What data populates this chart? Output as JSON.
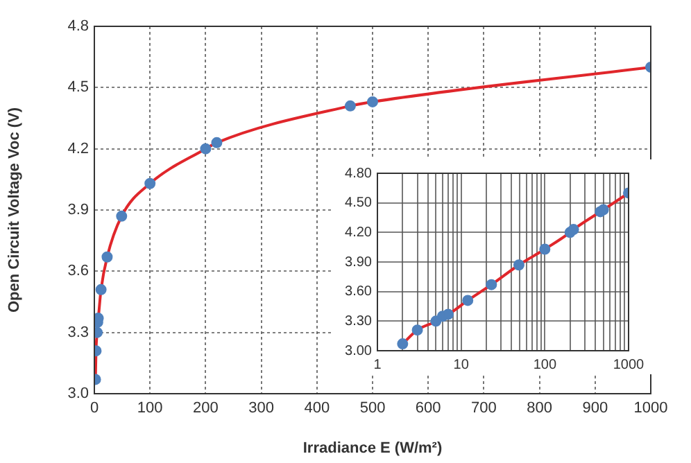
{
  "chart_data": [
    {
      "type": "line",
      "xlabel": "Irradiance E (W/m²)",
      "ylabel": "Open Circuit Voltage Voc (V)",
      "xlim": [
        0,
        1000
      ],
      "xticks": [
        0,
        100,
        200,
        300,
        400,
        500,
        600,
        700,
        800,
        900,
        1000
      ],
      "ylim": [
        3,
        4.8
      ],
      "yticks": [
        {
          "value": 3,
          "label": "3.0"
        },
        3.3,
        3.6,
        3.9,
        4.2,
        4.5,
        4.8
      ],
      "grid": true,
      "legend": false,
      "series": [
        {
          "color": "#e0262b",
          "marker": "none",
          "line_style": "solid",
          "x": [
            2,
            3,
            5,
            6,
            7,
            12,
            23,
            49,
            100,
            200,
            220,
            460,
            500,
            1000
          ],
          "values": [
            3.07,
            3.21,
            3.3,
            3.35,
            3.37,
            3.51,
            3.67,
            3.87,
            4.03,
            4.2,
            4.23,
            4.41,
            4.43,
            4.6
          ]
        },
        {
          "type": "scatter",
          "color": "#4f81bd",
          "marker": "circle",
          "x": [
            2,
            3,
            5,
            6,
            7,
            12,
            23,
            49,
            100,
            200,
            220,
            460,
            500,
            1000
          ],
          "values": [
            3.07,
            3.21,
            3.3,
            3.35,
            3.37,
            3.51,
            3.67,
            3.87,
            4.03,
            4.2,
            4.23,
            4.41,
            4.43,
            4.6
          ]
        }
      ]
    },
    {
      "type": "line",
      "log": "x",
      "xlim": [
        1,
        1000
      ],
      "xticks": [
        1,
        {
          "value": 2,
          "label": null
        },
        {
          "value": 3,
          "label": null
        },
        {
          "value": 4,
          "label": null
        },
        {
          "value": 5,
          "label": null
        },
        {
          "value": 6,
          "label": null
        },
        {
          "value": 7,
          "label": null
        },
        {
          "value": 8,
          "label": null
        },
        {
          "value": 9,
          "label": null
        },
        10,
        {
          "value": 20,
          "label": null
        },
        {
          "value": 30,
          "label": null
        },
        {
          "value": 40,
          "label": null
        },
        {
          "value": 50,
          "label": null
        },
        {
          "value": 60,
          "label": null
        },
        {
          "value": 70,
          "label": null
        },
        {
          "value": 80,
          "label": null
        },
        {
          "value": 90,
          "label": null
        },
        100,
        {
          "value": 200,
          "label": null
        },
        {
          "value": 300,
          "label": null
        },
        {
          "value": 400,
          "label": null
        },
        {
          "value": 500,
          "label": null
        },
        {
          "value": 600,
          "label": null
        },
        {
          "value": 700,
          "label": null
        },
        {
          "value": 800,
          "label": null
        },
        {
          "value": 900,
          "label": null
        },
        1000
      ],
      "ylim": [
        3,
        4.8
      ],
      "yticks": [
        {
          "value": 3,
          "label": "3.00"
        },
        {
          "value": 3.3,
          "label": "3.30"
        },
        {
          "value": 3.6,
          "label": "3.60"
        },
        {
          "value": 3.9,
          "label": "3.90"
        },
        {
          "value": 4.2,
          "label": "4.20"
        },
        {
          "value": 4.5,
          "label": "4.50"
        },
        {
          "value": 4.8,
          "label": "4.80"
        }
      ],
      "grid": true,
      "legend": false,
      "series": [
        {
          "color": "#e0262b",
          "marker": "none",
          "line_style": "solid",
          "x": [
            2,
            3,
            5,
            6,
            7,
            12,
            23,
            49,
            100,
            200,
            220,
            460,
            500,
            1000
          ],
          "values": [
            3.07,
            3.21,
            3.3,
            3.35,
            3.37,
            3.51,
            3.67,
            3.87,
            4.03,
            4.2,
            4.23,
            4.41,
            4.43,
            4.6
          ]
        },
        {
          "type": "scatter",
          "color": "#4f81bd",
          "marker": "circle",
          "x": [
            2,
            3,
            5,
            6,
            7,
            12,
            23,
            49,
            100,
            200,
            220,
            460,
            500,
            1000
          ],
          "values": [
            3.07,
            3.21,
            3.3,
            3.35,
            3.37,
            3.51,
            3.67,
            3.87,
            4.03,
            4.2,
            4.23,
            4.41,
            4.43,
            4.6
          ]
        }
      ]
    }
  ]
}
